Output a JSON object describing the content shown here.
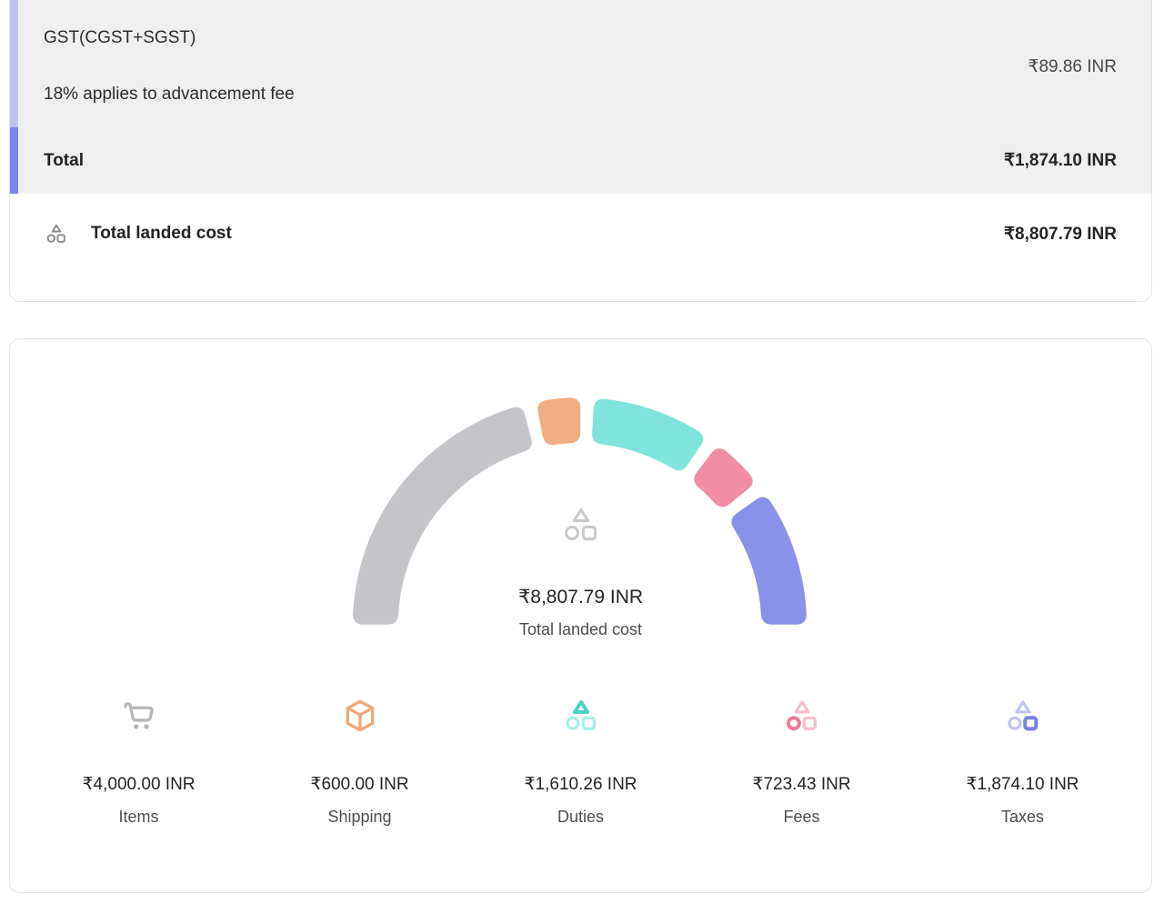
{
  "summary": {
    "rows": [
      {
        "title": "GST(CGST+SGST)",
        "description": "18% applies to advancement fee",
        "amount": "₹89.86 INR"
      }
    ],
    "total_label": "Total",
    "total_amount": "₹1,874.10 INR",
    "landed_label": "Total landed cost",
    "landed_amount": "₹8,807.79 INR"
  },
  "chart_data": {
    "type": "gauge",
    "title": "Total landed cost",
    "center_value": "₹8,807.79 INR",
    "center_label": "Total landed cost",
    "total": 8807.79,
    "currency": "INR",
    "arc_span_degrees": 180,
    "segment_gap_degrees": 3.5,
    "legend_position": "bottom",
    "segments": [
      {
        "name": "Items",
        "value": 4000.0,
        "display": "₹4,000.00 INR",
        "color": "#c5c5c9",
        "icon": "cart-icon"
      },
      {
        "name": "Shipping",
        "value": 600.0,
        "display": "₹600.00 INR",
        "color": "#f0ad80",
        "icon": "package-icon"
      },
      {
        "name": "Duties",
        "value": 1610.26,
        "display": "₹1,610.26 INR",
        "color": "#7fe5da",
        "icon": "shapes-triangle-icon"
      },
      {
        "name": "Fees",
        "value": 723.43,
        "display": "₹723.43 INR",
        "color": "#ef8ca6",
        "icon": "shapes-circle-icon"
      },
      {
        "name": "Taxes",
        "value": 1874.1,
        "display": "₹1,874.10 INR",
        "color": "#8a91e8",
        "icon": "shapes-square-icon"
      }
    ]
  },
  "colors": {
    "accent_light": "#bdc3f1",
    "accent_dark": "#7b87e8",
    "landed_icon": "#8a8d8f",
    "gauge_center_icon": "#c9cacc",
    "cart_icon": "#b6b7b9",
    "package_icon": "#f0a87c",
    "duties_strong": "#4ed0c3",
    "duties_soft": "#a5ede6",
    "fees_strong": "#ec7d99",
    "fees_soft": "#f6becb",
    "taxes_strong": "#7680e6",
    "taxes_soft": "#bfc4f3"
  }
}
